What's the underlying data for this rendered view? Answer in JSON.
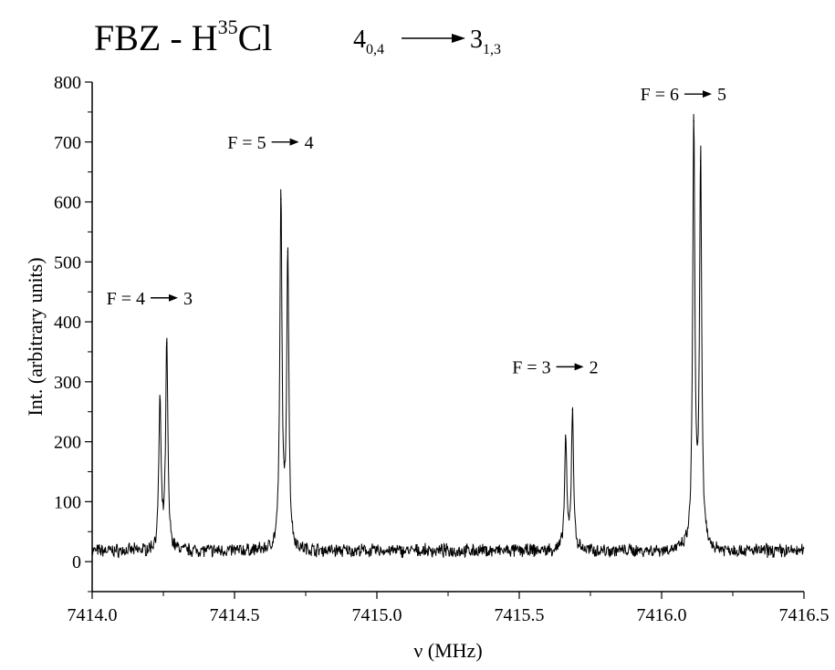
{
  "chart_data": {
    "type": "line",
    "title": {
      "molecule_prefix": "FBZ - H",
      "isotope": "35",
      "molecule_suffix": "Cl",
      "upper_level": "4",
      "upper_sub": "0,4",
      "lower_level": "3",
      "lower_sub": "1,3"
    },
    "xlabel": "ν (MHz)",
    "ylabel": "Int. (arbitrary units)",
    "xlim": [
      7414.0,
      7416.5
    ],
    "ylim": [
      -50,
      800
    ],
    "xticks": [
      "7414.0",
      "7414.5",
      "7415.0",
      "7415.5",
      "7416.0",
      "7416.5"
    ],
    "yticks": [
      "0",
      "100",
      "200",
      "300",
      "400",
      "500",
      "600",
      "700",
      "800"
    ],
    "baseline": 18,
    "grid": false,
    "peaks": [
      {
        "x": 7414.238,
        "y": 270
      },
      {
        "x": 7414.262,
        "y": 365
      },
      {
        "x": 7414.663,
        "y": 605
      },
      {
        "x": 7414.687,
        "y": 517
      },
      {
        "x": 7415.663,
        "y": 205
      },
      {
        "x": 7415.687,
        "y": 253
      },
      {
        "x": 7416.113,
        "y": 735
      },
      {
        "x": 7416.137,
        "y": 668
      }
    ],
    "annotations": [
      {
        "text": "F = 4",
        "target": "3",
        "x": 7414.25,
        "y": 440
      },
      {
        "text": "F = 5",
        "target": "4",
        "x": 7414.675,
        "y": 700
      },
      {
        "text": "F = 3",
        "target": "2",
        "x": 7415.675,
        "y": 325
      },
      {
        "text": "F = 6",
        "target": "5",
        "x": 7416.125,
        "y": 780
      }
    ]
  }
}
